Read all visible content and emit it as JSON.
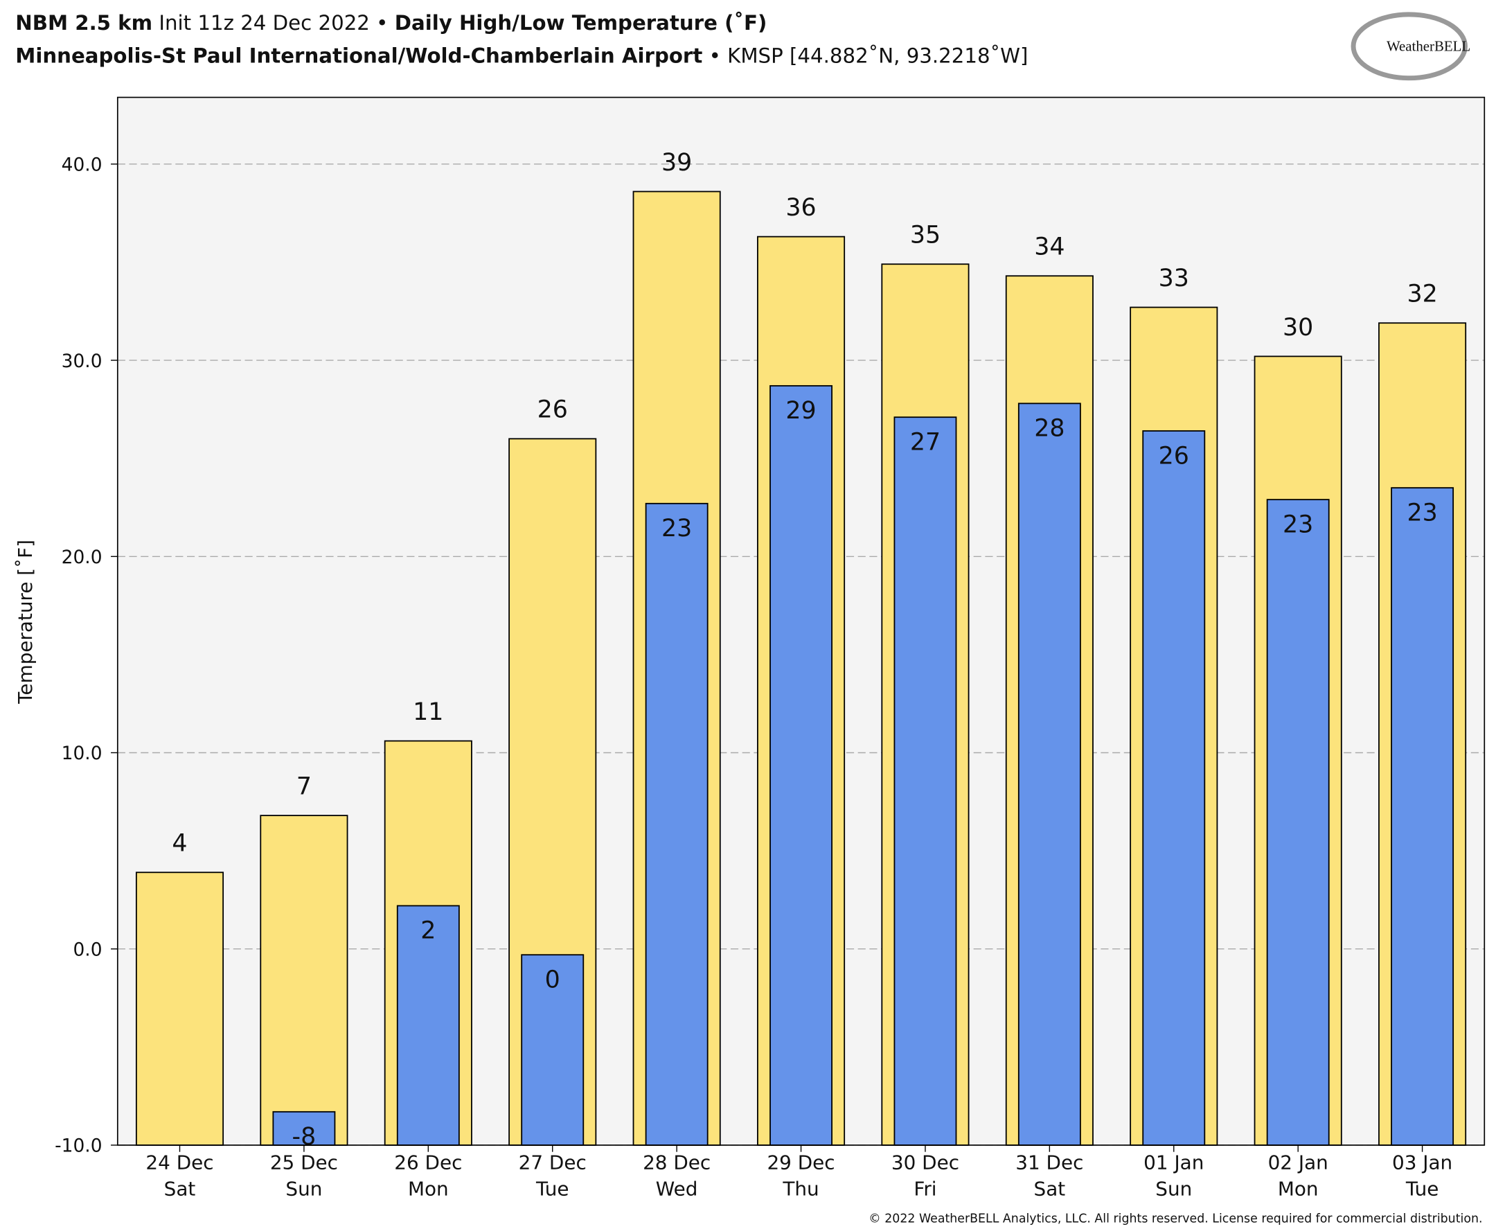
{
  "header": {
    "model": "NBM 2.5 km",
    "init": "Init 11z 24 Dec 2022",
    "separator": "•",
    "product": "Daily High/Low Temperature (˚F)",
    "station": "Minneapolis-St Paul International/Wold-Chamberlain Airport",
    "station_id": "KMSP [44.882˚N, 93.2218˚W]",
    "logo": "WeatherBELL"
  },
  "footer": {
    "copyright": "© 2022 WeatherBELL Analytics, LLC. All rights reserved. License required for commercial distribution."
  },
  "chart_data": {
    "type": "bar",
    "y_label": "Temperature [˚F]",
    "categories": [
      "24 Dec",
      "25 Dec",
      "26 Dec",
      "27 Dec",
      "28 Dec",
      "29 Dec",
      "30 Dec",
      "31 Dec",
      "01 Jan",
      "02 Jan",
      "03 Jan"
    ],
    "weekdays": [
      "Sat",
      "Sun",
      "Mon",
      "Tue",
      "Wed",
      "Thu",
      "Fri",
      "Sat",
      "Sun",
      "Mon",
      "Tue"
    ],
    "series": [
      {
        "color": "#fce37c",
        "values": [
          3.9,
          6.8,
          10.6,
          26.0,
          38.6,
          36.3,
          34.9,
          34.3,
          32.7,
          30.2,
          31.9
        ],
        "value_labels": [
          "4",
          "7",
          "11",
          "26",
          "39",
          "36",
          "35",
          "34",
          "33",
          "30",
          "32"
        ]
      },
      {
        "color": "#6593ea",
        "values": [
          null,
          -8.3,
          2.2,
          -0.3,
          22.7,
          28.7,
          27.1,
          27.8,
          26.4,
          22.9,
          23.5
        ],
        "value_labels": [
          null,
          "-8",
          "2",
          "0",
          "23",
          "29",
          "27",
          "28",
          "26",
          "23",
          "23"
        ]
      }
    ],
    "ylim": [
      -10,
      43.4
    ],
    "yticks": [
      {
        "value": -10,
        "label": "-10.0"
      },
      {
        "value": 0,
        "label": "0.0"
      },
      {
        "value": 10,
        "label": "10.0"
      },
      {
        "value": 20,
        "label": "20.0"
      },
      {
        "value": 30,
        "label": "30.0"
      },
      {
        "value": 40,
        "label": "40.0"
      }
    ],
    "grid": true
  }
}
